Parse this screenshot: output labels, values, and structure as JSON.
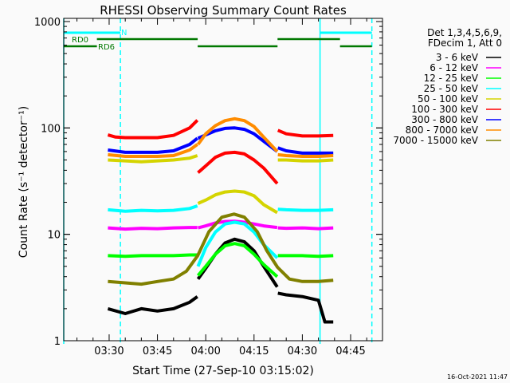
{
  "chart_data": {
    "type": "line",
    "title": "RHESSI Observing Summary Count Rates",
    "xlabel": "Start Time (27-Sep-10 03:15:02)",
    "ylabel": "Count Rate (s⁻¹ detector⁻¹)",
    "x_units": "minutes after 03:00",
    "xlim": [
      15.9,
      114.9
    ],
    "ylim": [
      1,
      1000
    ],
    "yscale": "log",
    "x_ticks": [
      {
        "value": 30,
        "label": "03:30"
      },
      {
        "value": 45,
        "label": "03:45"
      },
      {
        "value": 60,
        "label": "04:00"
      },
      {
        "value": 75,
        "label": "04:15"
      },
      {
        "value": 90,
        "label": "04:30"
      },
      {
        "value": 105,
        "label": "04:45"
      }
    ],
    "y_ticks": [
      {
        "value": 1,
        "label": "1"
      },
      {
        "value": 10,
        "label": "10"
      },
      {
        "value": 100,
        "label": "100"
      },
      {
        "value": 1000,
        "label": "1000"
      }
    ],
    "legend": {
      "placement": "right",
      "header": [
        "Det 1,3,4,5,6,9,",
        "FDecim 1, Att 0"
      ]
    },
    "series": [
      {
        "name": "3 - 6 keV",
        "color": "#000000",
        "segments": [
          [
            [
              29.6,
              2.0
            ],
            [
              35,
              1.8
            ],
            [
              40,
              2.0
            ],
            [
              45,
              1.9
            ],
            [
              50,
              2.0
            ],
            [
              55,
              2.3
            ],
            [
              57.4,
              2.6
            ]
          ],
          [
            [
              57.6,
              3.8
            ],
            [
              60,
              4.8
            ],
            [
              63,
              6.5
            ],
            [
              66,
              8.3
            ],
            [
              69,
              9.0
            ],
            [
              72,
              8.5
            ],
            [
              75,
              7.0
            ],
            [
              78,
              5.0
            ],
            [
              82.2,
              3.2
            ]
          ],
          [
            [
              82.4,
              2.8
            ],
            [
              85,
              2.7
            ],
            [
              90,
              2.6
            ],
            [
              95,
              2.4
            ],
            [
              97,
              1.5
            ],
            [
              99.6,
              1.5
            ]
          ]
        ]
      },
      {
        "name": "6 - 12 keV",
        "color": "#ff00ff",
        "segments": [
          [
            [
              29.6,
              11.5
            ],
            [
              35,
              11.2
            ],
            [
              40,
              11.4
            ],
            [
              45,
              11.3
            ],
            [
              50,
              11.5
            ],
            [
              55,
              11.6
            ],
            [
              57.4,
              11.6
            ]
          ],
          [
            [
              57.6,
              11.5
            ],
            [
              60,
              12.0
            ],
            [
              63,
              12.8
            ],
            [
              66,
              13.2
            ],
            [
              69,
              13.3
            ],
            [
              72,
              13.0
            ],
            [
              75,
              12.5
            ],
            [
              78,
              12.0
            ],
            [
              82.2,
              11.6
            ]
          ],
          [
            [
              82.4,
              11.5
            ],
            [
              85,
              11.4
            ],
            [
              90,
              11.5
            ],
            [
              95,
              11.3
            ],
            [
              99.6,
              11.5
            ]
          ]
        ]
      },
      {
        "name": "12 - 25 keV",
        "color": "#00ff00",
        "segments": [
          [
            [
              29.6,
              6.3
            ],
            [
              35,
              6.2
            ],
            [
              40,
              6.3
            ],
            [
              45,
              6.3
            ],
            [
              50,
              6.3
            ],
            [
              55,
              6.4
            ],
            [
              57.4,
              6.4
            ]
          ],
          [
            [
              57.6,
              4.1
            ],
            [
              60,
              5.0
            ],
            [
              63,
              6.5
            ],
            [
              66,
              7.8
            ],
            [
              69,
              8.2
            ],
            [
              72,
              7.8
            ],
            [
              75,
              6.5
            ],
            [
              78,
              5.2
            ],
            [
              82.2,
              4.0
            ]
          ],
          [
            [
              82.4,
              6.3
            ],
            [
              85,
              6.3
            ],
            [
              90,
              6.3
            ],
            [
              95,
              6.2
            ],
            [
              99.6,
              6.3
            ]
          ]
        ]
      },
      {
        "name": "25 - 50 keV",
        "color": "#00ffff",
        "segments": [
          [
            [
              29.6,
              17.0
            ],
            [
              35,
              16.5
            ],
            [
              40,
              16.8
            ],
            [
              45,
              16.6
            ],
            [
              50,
              16.8
            ],
            [
              55,
              17.5
            ],
            [
              57.4,
              18.5
            ]
          ],
          [
            [
              57.6,
              5.0
            ],
            [
              60,
              7.5
            ],
            [
              63,
              10.5
            ],
            [
              66,
              12.5
            ],
            [
              69,
              13.0
            ],
            [
              72,
              12.5
            ],
            [
              75,
              10.5
            ],
            [
              78,
              8.0
            ],
            [
              82.2,
              6.0
            ]
          ],
          [
            [
              82.4,
              17.2
            ],
            [
              85,
              17.0
            ],
            [
              90,
              16.8
            ],
            [
              95,
              16.8
            ],
            [
              99.6,
              17.0
            ]
          ]
        ]
      },
      {
        "name": "50 - 100 keV",
        "color": "#d4d400",
        "segments": [
          [
            [
              29.6,
              50
            ],
            [
              35,
              49
            ],
            [
              40,
              48
            ],
            [
              45,
              49
            ],
            [
              50,
              50
            ],
            [
              55,
              52
            ],
            [
              57.4,
              55
            ]
          ],
          [
            [
              57.6,
              19.5
            ],
            [
              60,
              21
            ],
            [
              63,
              23.5
            ],
            [
              66,
              25
            ],
            [
              69,
              25.5
            ],
            [
              72,
              25
            ],
            [
              75,
              23
            ],
            [
              78,
              19
            ],
            [
              82.2,
              16
            ]
          ],
          [
            [
              82.4,
              50
            ],
            [
              85,
              50
            ],
            [
              90,
              49
            ],
            [
              95,
              49
            ],
            [
              99.6,
              50
            ]
          ]
        ]
      },
      {
        "name": "100 - 300 keV",
        "color": "#ff0000",
        "segments": [
          [
            [
              29.6,
              86
            ],
            [
              32,
              82
            ],
            [
              35,
              81
            ],
            [
              40,
              81
            ],
            [
              45,
              81
            ],
            [
              50,
              85
            ],
            [
              55,
              100
            ],
            [
              57.4,
              118
            ]
          ],
          [
            [
              57.6,
              38
            ],
            [
              60,
              44
            ],
            [
              63,
              53
            ],
            [
              66,
              58
            ],
            [
              69,
              59
            ],
            [
              72,
              57
            ],
            [
              75,
              50
            ],
            [
              78,
              42
            ],
            [
              82.2,
              30
            ]
          ],
          [
            [
              82.4,
              95
            ],
            [
              85,
              88
            ],
            [
              90,
              84
            ],
            [
              95,
              84
            ],
            [
              99.6,
              85
            ]
          ]
        ]
      },
      {
        "name": "300 - 800 keV",
        "color": "#0000ff",
        "segments": [
          [
            [
              29.6,
              62
            ],
            [
              35,
              59
            ],
            [
              40,
              59
            ],
            [
              45,
              59
            ],
            [
              50,
              61
            ],
            [
              55,
              70
            ],
            [
              57.4,
              80
            ]
          ],
          [
            [
              57.6,
              80
            ],
            [
              60,
              86
            ],
            [
              63,
              94
            ],
            [
              66,
              99
            ],
            [
              69,
              100
            ],
            [
              72,
              97
            ],
            [
              75,
              88
            ],
            [
              78,
              75
            ],
            [
              82.2,
              60
            ]
          ],
          [
            [
              82.4,
              65
            ],
            [
              85,
              61
            ],
            [
              90,
              58
            ],
            [
              95,
              58
            ],
            [
              99.6,
              58
            ]
          ]
        ]
      },
      {
        "name": "800 - 7000 keV",
        "color": "#ff8c00",
        "segments": [
          [
            [
              29.6,
              56
            ],
            [
              35,
              54
            ],
            [
              40,
              54
            ],
            [
              45,
              54
            ],
            [
              50,
              55
            ],
            [
              55,
              62
            ],
            [
              57.4,
              70
            ]
          ],
          [
            [
              57.6,
              70
            ],
            [
              60,
              88
            ],
            [
              63,
              105
            ],
            [
              66,
              117
            ],
            [
              69,
              122
            ],
            [
              72,
              117
            ],
            [
              75,
              103
            ],
            [
              78,
              82
            ],
            [
              82.2,
              60
            ]
          ],
          [
            [
              82.4,
              56
            ],
            [
              85,
              55
            ],
            [
              90,
              54
            ],
            [
              95,
              54
            ],
            [
              99.6,
              55
            ]
          ]
        ]
      },
      {
        "name": "7000 - 15000 keV",
        "color": "#808000",
        "segments": [
          [
            [
              29.6,
              3.6
            ],
            [
              35,
              3.5
            ],
            [
              40,
              3.4
            ],
            [
              45,
              3.6
            ],
            [
              50,
              3.8
            ],
            [
              54,
              4.5
            ],
            [
              57.5,
              6.3
            ],
            [
              61,
              10.6
            ],
            [
              65,
              14.5
            ],
            [
              68.8,
              15.5
            ],
            [
              72,
              14.5
            ],
            [
              76,
              10.6
            ],
            [
              79,
              7.0
            ],
            [
              82.3,
              4.9
            ],
            [
              86,
              3.8
            ],
            [
              90,
              3.6
            ],
            [
              95,
              3.6
            ],
            [
              99.6,
              3.7
            ]
          ]
        ]
      }
    ],
    "time_markers": [
      {
        "type": "solid",
        "value": 15.9,
        "color": "#00ffff"
      },
      {
        "type": "dashed",
        "value": 33.5,
        "color": "#00ffff"
      },
      {
        "type": "solid",
        "value": 95.5,
        "color": "#00ffff"
      },
      {
        "type": "dashed",
        "value": 111.6,
        "color": "#00ffff"
      }
    ],
    "state_bars": [
      {
        "label": "N",
        "color": "#00ffff",
        "row": 0,
        "intervals": [
          [
            15.9,
            33.5
          ],
          [
            95.5,
            111.6
          ]
        ]
      },
      {
        "label": "RD0",
        "color": "#007800",
        "row": 1,
        "intervals": [
          [
            26.2,
            57.5
          ],
          [
            82.3,
            101.7
          ]
        ]
      },
      {
        "label": "RD6",
        "color": "#007800",
        "row": 2,
        "intervals": [
          [
            15.9,
            26.2
          ],
          [
            57.5,
            82.3
          ],
          [
            101.7,
            111.6
          ]
        ]
      }
    ]
  },
  "footer": {
    "timestamp": "16-Oct-2021 11:47"
  }
}
